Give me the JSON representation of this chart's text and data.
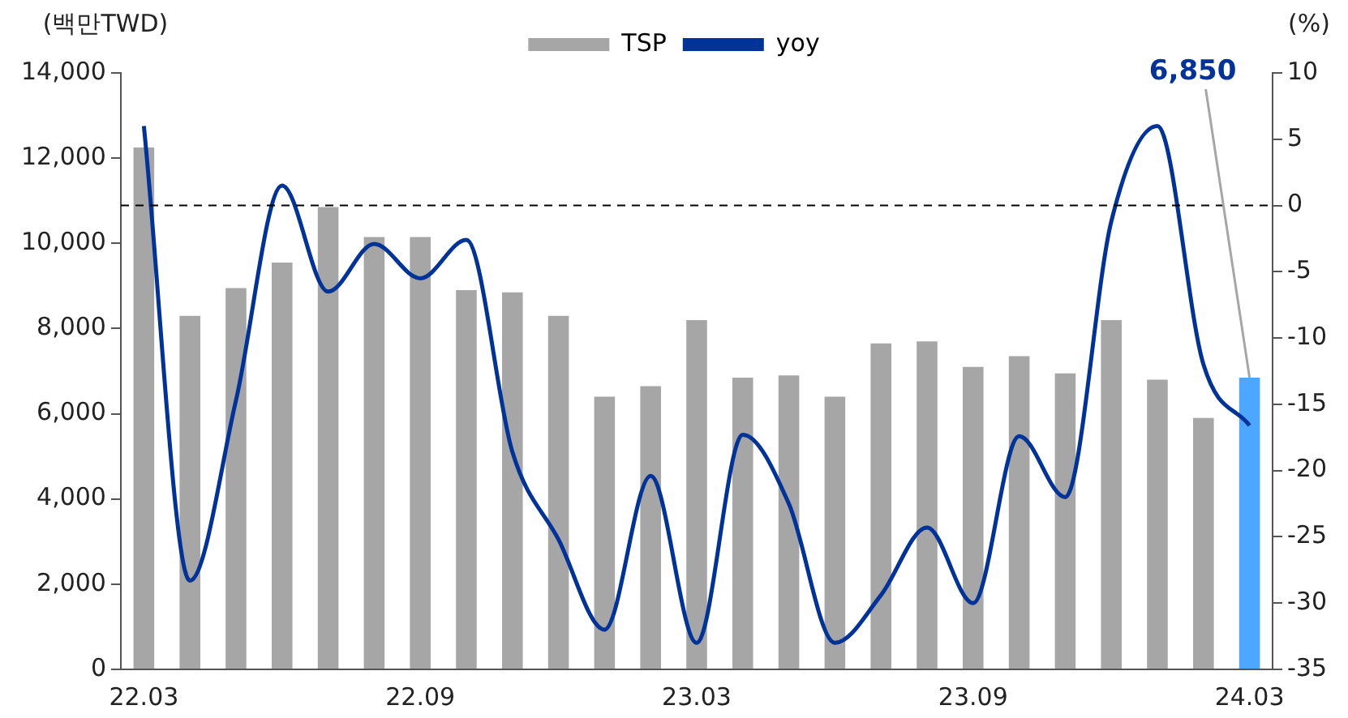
{
  "chart_data": {
    "type": "bar",
    "ylabel": "(백만TWD)",
    "y2label": "(%)",
    "categories": [
      "22.03",
      null,
      null,
      null,
      null,
      null,
      "22.09",
      null,
      null,
      null,
      null,
      null,
      "23.03",
      null,
      null,
      null,
      null,
      null,
      "23.09",
      null,
      null,
      null,
      null,
      null,
      "24.03"
    ],
    "series": [
      {
        "name": "TSP",
        "color": "#a6a6a6",
        "colors": [
          "#a6a6a6",
          "#a6a6a6",
          "#a6a6a6",
          "#a6a6a6",
          "#a6a6a6",
          "#a6a6a6",
          "#a6a6a6",
          "#a6a6a6",
          "#a6a6a6",
          "#a6a6a6",
          "#a6a6a6",
          "#a6a6a6",
          "#a6a6a6",
          "#a6a6a6",
          "#a6a6a6",
          "#a6a6a6",
          "#a6a6a6",
          "#a6a6a6",
          "#a6a6a6",
          "#a6a6a6",
          "#a6a6a6",
          "#a6a6a6",
          "#a6a6a6",
          "#a6a6a6",
          "#4da6ff"
        ],
        "values": [
          12250,
          8300,
          8950,
          9550,
          10850,
          10150,
          10150,
          8900,
          8850,
          8300,
          6400,
          6650,
          8200,
          6850,
          6900,
          6400,
          7650,
          7700,
          7100,
          7350,
          6950,
          8200,
          6800,
          5900,
          6850
        ]
      },
      {
        "name": "yoy",
        "type": "line",
        "axis": "y2",
        "color": "#003399",
        "values": [
          6,
          -28.3,
          -14.7,
          1.5,
          -6.5,
          -2.9,
          -5.5,
          -2.6,
          -18.6,
          -25.2,
          -32,
          -20.4,
          -33,
          -17.3,
          -22.5,
          -33,
          -29.4,
          -24.3,
          -30,
          -17.4,
          -22,
          -1.2,
          6,
          -12,
          -16.6
        ]
      }
    ],
    "ylim": [
      0,
      14000
    ],
    "yticks": [
      {
        "value": 0,
        "label": "0"
      },
      {
        "value": 2000,
        "label": "2,000"
      },
      {
        "value": 4000,
        "label": "4,000"
      },
      {
        "value": 6000,
        "label": "6,000"
      },
      {
        "value": 8000,
        "label": "8,000"
      },
      {
        "value": 10000,
        "label": "10,000"
      },
      {
        "value": 12000,
        "label": "12,000"
      },
      {
        "value": 14000,
        "label": "14,000"
      }
    ],
    "y2lim": [
      -35,
      10
    ],
    "y2ticks": [
      -35,
      -30,
      -25,
      -20,
      -15,
      -10,
      -5,
      0,
      5,
      10
    ],
    "ref_lines": [
      {
        "axis": "y2",
        "value": 0,
        "color": "#000000",
        "line_style": "dashed"
      }
    ],
    "annotations": [
      {
        "text": "6,850",
        "x": "24.03",
        "y": 6850
      }
    ],
    "legend": "top",
    "grid": false,
    "marker": "none",
    "line_style": "solid"
  }
}
